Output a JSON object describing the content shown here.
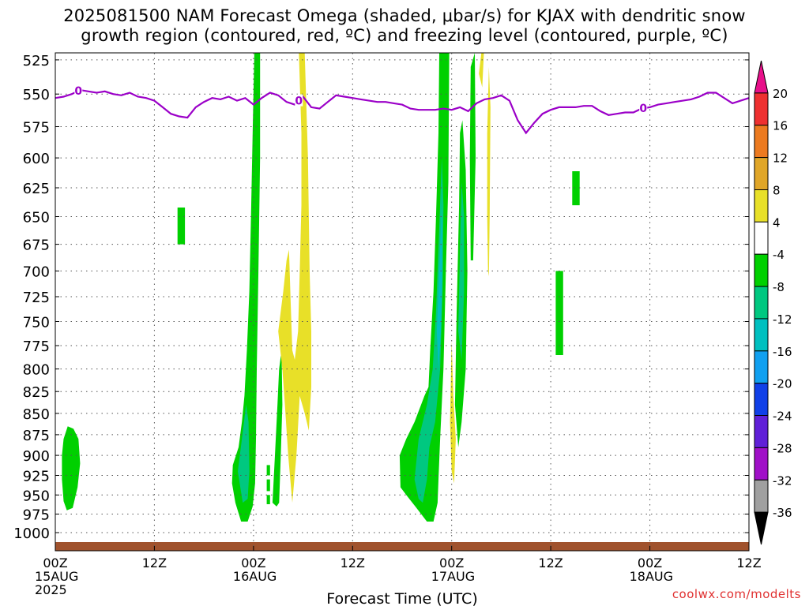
{
  "title": {
    "line1": "2025081500 NAM Forecast Omega (shaded, μbar/s) for KJAX with dendritic snow",
    "line2": "growth region (contoured, red, ºC) and freezing level (contoured, purple, ºC)"
  },
  "credit": "coolwx.com/modelts",
  "colors": {
    "freezing_line": "#9b00c8",
    "ground": "#a0522d",
    "grid": "#555555"
  },
  "chart_data": {
    "type": "heatmap",
    "xlabel": "Forecast Time (UTC)",
    "xlim_hours": [
      0,
      84
    ],
    "ylim_hPa": [
      1025,
      520
    ],
    "y_scale": "log",
    "x_ticks": [
      {
        "hour": 0,
        "line1": "00Z",
        "line2": "15AUG",
        "line3": "2025"
      },
      {
        "hour": 12,
        "line1": "12Z",
        "line2": "",
        "line3": ""
      },
      {
        "hour": 24,
        "line1": "00Z",
        "line2": "16AUG",
        "line3": ""
      },
      {
        "hour": 36,
        "line1": "12Z",
        "line2": "",
        "line3": ""
      },
      {
        "hour": 48,
        "line1": "00Z",
        "line2": "17AUG",
        "line3": ""
      },
      {
        "hour": 60,
        "line1": "12Z",
        "line2": "",
        "line3": ""
      },
      {
        "hour": 72,
        "line1": "00Z",
        "line2": "18AUG",
        "line3": ""
      },
      {
        "hour": 84,
        "line1": "12Z",
        "line2": "",
        "line3": ""
      }
    ],
    "y_ticks": [
      "525",
      "550",
      "575",
      "600",
      "625",
      "650",
      "675",
      "700",
      "725",
      "750",
      "775",
      "800",
      "825",
      "850",
      "875",
      "900",
      "925",
      "950",
      "975",
      "1000"
    ],
    "grid": true,
    "legend": {
      "placement": "right",
      "labels": [
        "20",
        "16",
        "12",
        "8",
        "4",
        "-4",
        "-8",
        "-12",
        "-16",
        "-20",
        "-24",
        "-28",
        "-32",
        "-36"
      ],
      "bands": [
        {
          "color": "#e8108a"
        },
        {
          "color": "#ee3030"
        },
        {
          "color": "#ec7a20"
        },
        {
          "color": "#e0a628"
        },
        {
          "color": "#e8e028"
        },
        {
          "color": "#ffffff"
        },
        {
          "color": "#00d000"
        },
        {
          "color": "#00c880"
        },
        {
          "color": "#00c0c0"
        },
        {
          "color": "#10a0f0"
        },
        {
          "color": "#1040e8"
        },
        {
          "color": "#6020d8"
        },
        {
          "color": "#a010c8"
        },
        {
          "color": "#a0a0a0"
        },
        {
          "color": "#000000"
        }
      ]
    },
    "freezing_level": {
      "label": "0",
      "label_hours": [
        2.8,
        29.5,
        71.2
      ],
      "points": [
        [
          0,
          553
        ],
        [
          1,
          552
        ],
        [
          2,
          550
        ],
        [
          3,
          547
        ],
        [
          4,
          548
        ],
        [
          5,
          549
        ],
        [
          6,
          548
        ],
        [
          7,
          550
        ],
        [
          8,
          551
        ],
        [
          9,
          549
        ],
        [
          10,
          552
        ],
        [
          11,
          553
        ],
        [
          12,
          555
        ],
        [
          13,
          560
        ],
        [
          14,
          565
        ],
        [
          15,
          567
        ],
        [
          16,
          568
        ],
        [
          17,
          560
        ],
        [
          18,
          556
        ],
        [
          19,
          553
        ],
        [
          20,
          554
        ],
        [
          21,
          552
        ],
        [
          22,
          555
        ],
        [
          23,
          553
        ],
        [
          24,
          558
        ],
        [
          25,
          553
        ],
        [
          26,
          549
        ],
        [
          27,
          551
        ],
        [
          28,
          556
        ],
        [
          29,
          558
        ],
        [
          30,
          552
        ],
        [
          31,
          560
        ],
        [
          32,
          561
        ],
        [
          33,
          556
        ],
        [
          34,
          551
        ],
        [
          35,
          552
        ],
        [
          36,
          553
        ],
        [
          37,
          554
        ],
        [
          38,
          555
        ],
        [
          39,
          556
        ],
        [
          40,
          556
        ],
        [
          41,
          557
        ],
        [
          42,
          558
        ],
        [
          43,
          561
        ],
        [
          44,
          562
        ],
        [
          45,
          562
        ],
        [
          46,
          562
        ],
        [
          47,
          561
        ],
        [
          48,
          562
        ],
        [
          49,
          560
        ],
        [
          50,
          563
        ],
        [
          51,
          557
        ],
        [
          52,
          554
        ],
        [
          53,
          553
        ],
        [
          54,
          551
        ],
        [
          55,
          555
        ],
        [
          56,
          570
        ],
        [
          57,
          580
        ],
        [
          58,
          572
        ],
        [
          59,
          565
        ],
        [
          60,
          562
        ],
        [
          61,
          560
        ],
        [
          62,
          560
        ],
        [
          63,
          560
        ],
        [
          64,
          559
        ],
        [
          65,
          559
        ],
        [
          66,
          563
        ],
        [
          67,
          566
        ],
        [
          68,
          565
        ],
        [
          69,
          564
        ],
        [
          70,
          564
        ],
        [
          71,
          561
        ],
        [
          72,
          560
        ],
        [
          73,
          558
        ],
        [
          74,
          557
        ],
        [
          75,
          556
        ],
        [
          76,
          555
        ],
        [
          77,
          554
        ],
        [
          78,
          552
        ],
        [
          79,
          549
        ],
        [
          80,
          549
        ],
        [
          81,
          553
        ],
        [
          82,
          557
        ],
        [
          83,
          555
        ],
        [
          84,
          553
        ]
      ]
    },
    "shaded_regions": [
      {
        "value": -6,
        "points": [
          [
            1.0,
            880
          ],
          [
            1.5,
            865
          ],
          [
            2.2,
            868
          ],
          [
            2.8,
            880
          ],
          [
            3.0,
            910
          ],
          [
            2.7,
            940
          ],
          [
            2.1,
            967
          ],
          [
            1.4,
            970
          ],
          [
            1.0,
            958
          ],
          [
            0.8,
            930
          ],
          [
            0.8,
            900
          ]
        ]
      },
      {
        "value": -6,
        "points": [
          [
            14.8,
            642
          ],
          [
            15.7,
            642
          ],
          [
            15.7,
            675
          ],
          [
            14.8,
            675
          ]
        ]
      },
      {
        "value": -6,
        "points": [
          [
            21.5,
            912
          ],
          [
            22.2,
            890
          ],
          [
            22.6,
            860
          ],
          [
            22.9,
            830
          ],
          [
            23.2,
            780
          ],
          [
            23.5,
            720
          ],
          [
            23.7,
            650
          ],
          [
            23.9,
            580
          ],
          [
            24.1,
            520
          ],
          [
            24.8,
            520
          ],
          [
            24.8,
            600
          ],
          [
            24.6,
            700
          ],
          [
            24.4,
            800
          ],
          [
            24.3,
            880
          ],
          [
            24.2,
            935
          ],
          [
            23.9,
            965
          ],
          [
            23.3,
            985
          ],
          [
            22.5,
            985
          ],
          [
            21.8,
            960
          ],
          [
            21.4,
            935
          ]
        ]
      },
      {
        "value": -10,
        "points": [
          [
            22.1,
            920
          ],
          [
            22.6,
            880
          ],
          [
            23.1,
            840
          ],
          [
            23.4,
            860
          ],
          [
            23.5,
            920
          ],
          [
            23.3,
            955
          ],
          [
            22.7,
            960
          ]
        ]
      },
      {
        "value": -6,
        "points": [
          [
            25.6,
            912
          ],
          [
            26.0,
            912
          ],
          [
            26.0,
            925
          ],
          [
            25.6,
            925
          ]
        ]
      },
      {
        "value": -6,
        "points": [
          [
            25.6,
            930
          ],
          [
            26.0,
            930
          ],
          [
            26.0,
            945
          ],
          [
            25.6,
            945
          ]
        ]
      },
      {
        "value": -6,
        "points": [
          [
            25.6,
            950
          ],
          [
            26.0,
            950
          ],
          [
            26.0,
            962
          ],
          [
            25.6,
            962
          ]
        ]
      },
      {
        "value": -6,
        "points": [
          [
            26.3,
            960
          ],
          [
            26.6,
            900
          ],
          [
            26.9,
            840
          ],
          [
            27.1,
            800
          ],
          [
            27.4,
            780
          ],
          [
            27.5,
            840
          ],
          [
            27.3,
            900
          ],
          [
            27.1,
            960
          ],
          [
            26.8,
            965
          ]
        ]
      },
      {
        "value": 5,
        "points": [
          [
            27.0,
            760
          ],
          [
            27.6,
            720
          ],
          [
            28.0,
            690
          ],
          [
            28.3,
            680
          ],
          [
            28.5,
            730
          ],
          [
            28.7,
            780
          ],
          [
            29.0,
            790
          ],
          [
            29.4,
            760
          ],
          [
            29.6,
            700
          ],
          [
            29.8,
            640
          ],
          [
            29.8,
            580
          ],
          [
            29.5,
            520
          ],
          [
            30.2,
            520
          ],
          [
            30.6,
            600
          ],
          [
            30.8,
            700
          ],
          [
            31.0,
            760
          ],
          [
            31.0,
            820
          ],
          [
            30.7,
            870
          ],
          [
            30.2,
            850
          ],
          [
            29.6,
            830
          ],
          [
            29.2,
            900
          ],
          [
            28.7,
            960
          ],
          [
            28.2,
            900
          ],
          [
            27.8,
            840
          ],
          [
            27.5,
            800
          ]
        ]
      },
      {
        "value": -6,
        "points": [
          [
            41.8,
            940
          ],
          [
            41.7,
            900
          ],
          [
            42.5,
            880
          ],
          [
            43.5,
            860
          ],
          [
            44.7,
            830
          ],
          [
            45.2,
            820
          ],
          [
            45.4,
            780
          ],
          [
            45.8,
            720
          ],
          [
            46.1,
            650
          ],
          [
            46.4,
            580
          ],
          [
            46.5,
            520
          ],
          [
            47.7,
            520
          ],
          [
            47.6,
            620
          ],
          [
            47.3,
            700
          ],
          [
            47.0,
            800
          ],
          [
            46.6,
            880
          ],
          [
            46.4,
            930
          ],
          [
            46.3,
            960
          ],
          [
            45.8,
            985
          ],
          [
            45.0,
            985
          ],
          [
            43.6,
            965
          ],
          [
            42.5,
            950
          ]
        ]
      },
      {
        "value": -10,
        "points": [
          [
            43.5,
            930
          ],
          [
            44.0,
            880
          ],
          [
            45.0,
            840
          ],
          [
            45.7,
            800
          ],
          [
            46.1,
            740
          ],
          [
            46.5,
            660
          ],
          [
            46.8,
            600
          ],
          [
            47.0,
            640
          ],
          [
            46.9,
            720
          ],
          [
            46.6,
            800
          ],
          [
            46.0,
            860
          ],
          [
            45.3,
            890
          ],
          [
            45.0,
            930
          ],
          [
            44.5,
            960
          ],
          [
            44.0,
            955
          ]
        ]
      },
      {
        "value": -14,
        "points": [
          [
            46.2,
            760
          ],
          [
            46.5,
            700
          ],
          [
            46.8,
            640
          ],
          [
            46.9,
            700
          ],
          [
            46.7,
            760
          ],
          [
            46.4,
            800
          ]
        ]
      },
      {
        "value": 5,
        "points": [
          [
            47.8,
            860
          ],
          [
            48.0,
            770
          ],
          [
            48.2,
            830
          ],
          [
            48.5,
            880
          ],
          [
            48.3,
            935
          ],
          [
            48.0,
            920
          ]
        ]
      },
      {
        "value": -6,
        "points": [
          [
            48.4,
            840
          ],
          [
            48.6,
            740
          ],
          [
            48.9,
            640
          ],
          [
            49.0,
            580
          ],
          [
            49.3,
            570
          ],
          [
            49.7,
            610
          ],
          [
            49.9,
            700
          ],
          [
            49.7,
            800
          ],
          [
            49.2,
            860
          ],
          [
            48.8,
            890
          ]
        ]
      },
      {
        "value": -10,
        "points": [
          [
            48.8,
            760
          ],
          [
            49.0,
            680
          ],
          [
            49.2,
            620
          ],
          [
            49.5,
            650
          ],
          [
            49.5,
            720
          ],
          [
            49.2,
            790
          ]
        ]
      },
      {
        "value": -6,
        "points": [
          [
            50.2,
            600
          ],
          [
            50.3,
            530
          ],
          [
            50.8,
            520
          ],
          [
            50.9,
            600
          ],
          [
            50.6,
            690
          ],
          [
            50.3,
            690
          ]
        ]
      },
      {
        "value": 5,
        "points": [
          [
            51.3,
            535
          ],
          [
            51.6,
            520
          ],
          [
            51.9,
            520
          ],
          [
            51.7,
            545
          ]
        ]
      },
      {
        "value": 5,
        "points": [
          [
            52.3,
            580
          ],
          [
            52.5,
            530
          ],
          [
            52.7,
            560
          ],
          [
            52.6,
            650
          ],
          [
            52.5,
            705
          ],
          [
            52.4,
            700
          ],
          [
            52.3,
            650
          ]
        ]
      },
      {
        "value": -6,
        "points": [
          [
            62.6,
            611
          ],
          [
            63.5,
            611
          ],
          [
            63.5,
            640
          ],
          [
            62.6,
            640
          ]
        ]
      },
      {
        "value": -6,
        "points": [
          [
            60.6,
            700
          ],
          [
            61.5,
            700
          ],
          [
            61.5,
            785
          ],
          [
            60.6,
            785
          ]
        ]
      }
    ]
  }
}
